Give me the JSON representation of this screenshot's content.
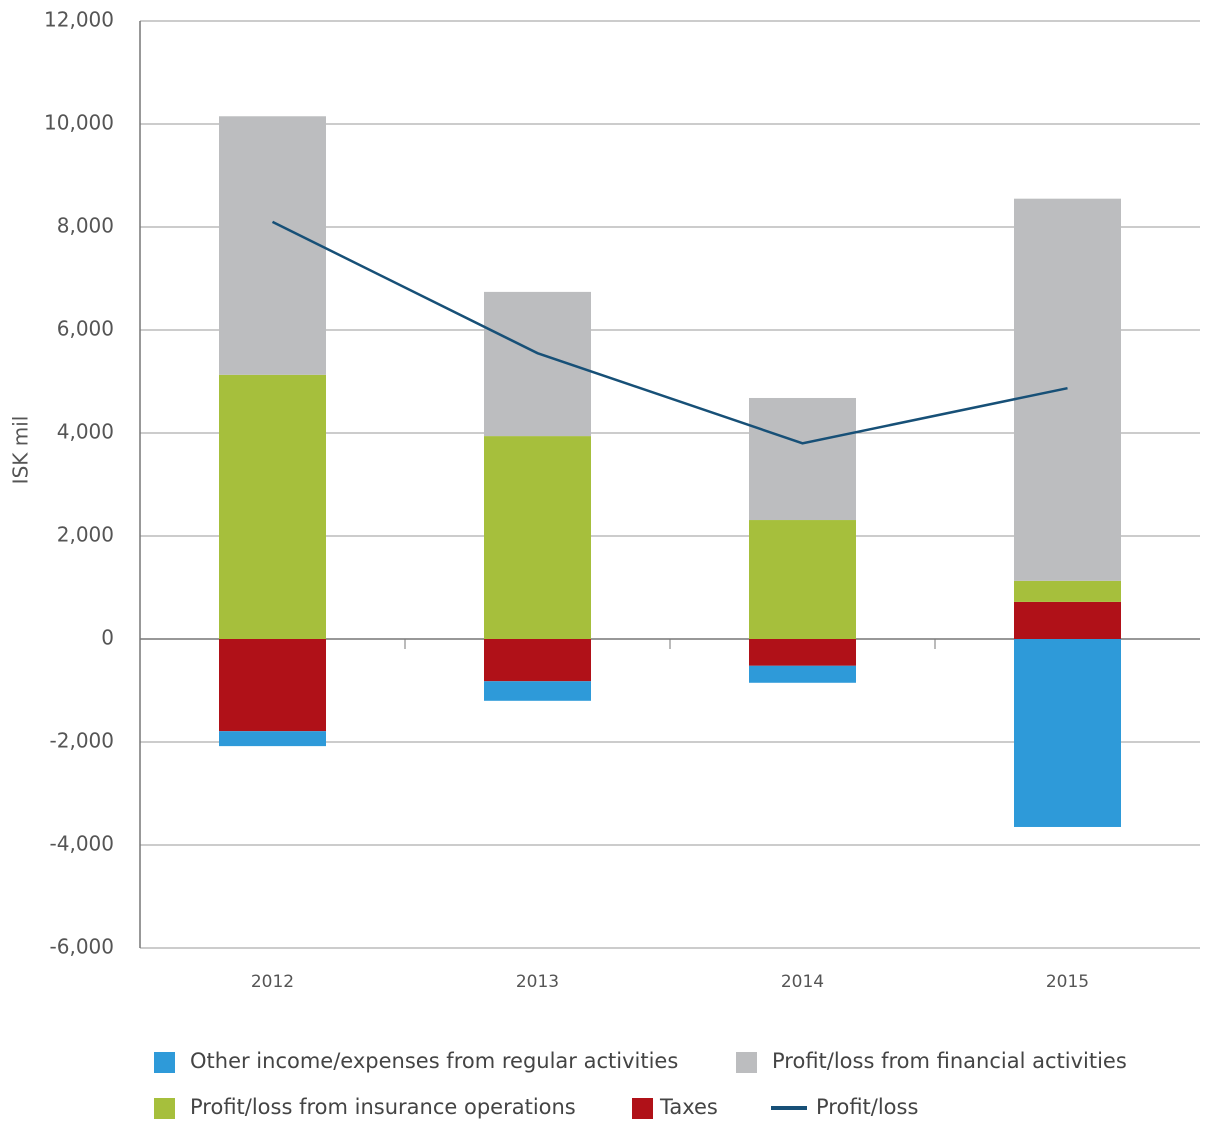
{
  "chart_data": {
    "type": "bar",
    "stacked": true,
    "y_label": "ISK mil",
    "categories": [
      "2012",
      "2013",
      "2014",
      "2015"
    ],
    "series": [
      {
        "name": "Taxes",
        "color": "#b01118",
        "values": [
          -1790,
          -820,
          -520,
          720
        ]
      },
      {
        "name": "Other income/expenses from regular activities",
        "color": "#2e9ad9",
        "values": [
          -290,
          -380,
          -330,
          -3650
        ]
      },
      {
        "name": "Profit/loss from insurance operations",
        "color": "#a6bf3c",
        "values": [
          5130,
          3940,
          2310,
          410
        ]
      },
      {
        "name": "Profit/loss from financial activities",
        "color": "#bcbdbf",
        "values": [
          5020,
          2800,
          2370,
          7420
        ]
      },
      {
        "name": "Profit/loss",
        "type": "line",
        "color": "#175077",
        "values": [
          8100,
          5550,
          3800,
          4870
        ]
      }
    ],
    "ylim": [
      -6000,
      12000
    ],
    "yticks": [
      {
        "value": -6000,
        "label": "-6,000"
      },
      {
        "value": -4000,
        "label": "-4,000"
      },
      {
        "value": -2000,
        "label": "-2,000"
      },
      0,
      {
        "value": 2000,
        "label": "2,000"
      },
      {
        "value": 4000,
        "label": "4,000"
      },
      {
        "value": 6000,
        "label": "6,000"
      },
      {
        "value": 8000,
        "label": "8,000"
      },
      {
        "value": 10000,
        "label": "10,000"
      },
      {
        "value": 12000,
        "label": "12,000"
      }
    ],
    "grid": true,
    "legend": "bottom"
  }
}
